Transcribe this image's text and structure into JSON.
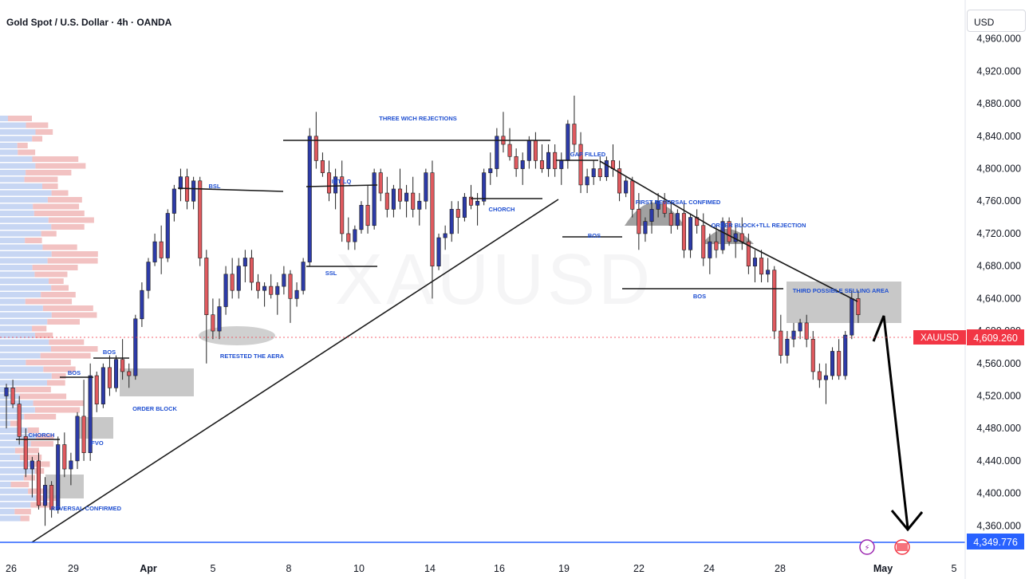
{
  "header": {
    "title": "Gold Spot / U.S. Dollar · 4h · OANDA",
    "currency": "USD",
    "watermark": "XAUUSD"
  },
  "colors": {
    "bull": "#2d3ba8",
    "bear": "#e05a5f",
    "label": "#1f4fd1",
    "price_tag": "#f23645",
    "blue_line": "#2962ff",
    "zone": "#b5b5b5",
    "profile_blue": "#c7d6f3",
    "profile_red": "#f2c2c2"
  },
  "chart_data": {
    "type": "candlestick",
    "symbol": "XAUUSD",
    "timeframe": "4h",
    "ylim": [
      4320,
      5000
    ],
    "y_ticks": [
      4360,
      4400,
      4440,
      4480,
      4520,
      4560,
      4600,
      4640,
      4680,
      4720,
      4760,
      4800,
      4840,
      4880,
      4920,
      4960
    ],
    "y_tick_labels": [
      "4,360.000",
      "4,400.000",
      "4,440.000",
      "4,480.000",
      "4,520.000",
      "4,560.000",
      "4,600.000",
      "4,640.000",
      "4,680.000",
      "4,720.000",
      "4,760.000",
      "4,800.000",
      "4,840.000",
      "4,880.000",
      "4,920.000",
      "4,960.000"
    ],
    "x_labels": [
      "26",
      "29",
      "Apr",
      "5",
      "8",
      "10",
      "14",
      "16",
      "19",
      "22",
      "24",
      "28",
      "May",
      "5"
    ],
    "last_price": {
      "label": "XAUUSD",
      "value": "4,609.260"
    },
    "support_line": {
      "value": "4,349.776"
    },
    "grid": false,
    "annotations": [
      "THREE WICH REJECTIONS",
      "GAP FILLED",
      "BSL",
      "INT LQ",
      "FIRST REVERSAL CONFIMED",
      "ORDER BLOCK+TLL REJECTION",
      "BOS",
      "BOS",
      "CHORCH",
      "SSL",
      "THIRD POSSIBLE SELLING AREA",
      "BOS",
      "BOS",
      "CHORCH",
      "FVO",
      "ORDER BLOCK",
      "RETESTED THE AERA",
      "REVERSAL CONFIRMED"
    ],
    "candles": [
      [
        4520,
        4535,
        4480,
        4530
      ],
      [
        4530,
        4540,
        4505,
        4510
      ],
      [
        4510,
        4520,
        4460,
        4470
      ],
      [
        4470,
        4480,
        4420,
        4430
      ],
      [
        4430,
        4445,
        4395,
        4440
      ],
      [
        4440,
        4450,
        4380,
        4385
      ],
      [
        4385,
        4420,
        4360,
        4410
      ],
      [
        4410,
        4415,
        4370,
        4380
      ],
      [
        4380,
        4470,
        4375,
        4460
      ],
      [
        4460,
        4475,
        4420,
        4430
      ],
      [
        4430,
        4450,
        4410,
        4440
      ],
      [
        4440,
        4500,
        4430,
        4495
      ],
      [
        4495,
        4540,
        4440,
        4450
      ],
      [
        4450,
        4560,
        4440,
        4545
      ],
      [
        4545,
        4550,
        4500,
        4510
      ],
      [
        4510,
        4560,
        4505,
        4555
      ],
      [
        4555,
        4570,
        4520,
        4530
      ],
      [
        4530,
        4570,
        4525,
        4565
      ],
      [
        4565,
        4590,
        4540,
        4550
      ],
      [
        4550,
        4560,
        4530,
        4545
      ],
      [
        4545,
        4620,
        4540,
        4615
      ],
      [
        4615,
        4660,
        4605,
        4650
      ],
      [
        4650,
        4690,
        4640,
        4685
      ],
      [
        4685,
        4720,
        4680,
        4710
      ],
      [
        4710,
        4730,
        4670,
        4690
      ],
      [
        4690,
        4750,
        4685,
        4745
      ],
      [
        4745,
        4780,
        4735,
        4775
      ],
      [
        4775,
        4800,
        4760,
        4790
      ],
      [
        4790,
        4800,
        4750,
        4760
      ],
      [
        4760,
        4790,
        4750,
        4785
      ],
      [
        4785,
        4790,
        4680,
        4690
      ],
      [
        4690,
        4700,
        4560,
        4620
      ],
      [
        4620,
        4640,
        4590,
        4600
      ],
      [
        4600,
        4640,
        4590,
        4630
      ],
      [
        4630,
        4680,
        4620,
        4670
      ],
      [
        4670,
        4690,
        4640,
        4650
      ],
      [
        4650,
        4690,
        4640,
        4680
      ],
      [
        4680,
        4700,
        4660,
        4690
      ],
      [
        4690,
        4700,
        4650,
        4660
      ],
      [
        4660,
        4670,
        4640,
        4650
      ],
      [
        4650,
        4660,
        4630,
        4655
      ],
      [
        4655,
        4670,
        4640,
        4645
      ],
      [
        4645,
        4660,
        4620,
        4655
      ],
      [
        4655,
        4680,
        4645,
        4670
      ],
      [
        4670,
        4675,
        4610,
        4640
      ],
      [
        4640,
        4660,
        4630,
        4650
      ],
      [
        4650,
        4690,
        4645,
        4685
      ],
      [
        4685,
        4850,
        4680,
        4840
      ],
      [
        4840,
        4870,
        4800,
        4810
      ],
      [
        4810,
        4820,
        4790,
        4795
      ],
      [
        4795,
        4810,
        4760,
        4770
      ],
      [
        4770,
        4800,
        4750,
        4790
      ],
      [
        4790,
        4810,
        4710,
        4720
      ],
      [
        4720,
        4740,
        4700,
        4710
      ],
      [
        4710,
        4730,
        4700,
        4725
      ],
      [
        4725,
        4760,
        4720,
        4755
      ],
      [
        4755,
        4780,
        4720,
        4730
      ],
      [
        4730,
        4800,
        4725,
        4795
      ],
      [
        4795,
        4800,
        4760,
        4770
      ],
      [
        4770,
        4790,
        4740,
        4750
      ],
      [
        4750,
        4780,
        4740,
        4775
      ],
      [
        4775,
        4800,
        4750,
        4760
      ],
      [
        4760,
        4780,
        4740,
        4770
      ],
      [
        4770,
        4790,
        4740,
        4750
      ],
      [
        4750,
        4770,
        4730,
        4760
      ],
      [
        4760,
        4800,
        4750,
        4795
      ],
      [
        4795,
        4810,
        4640,
        4680
      ],
      [
        4680,
        4720,
        4675,
        4715
      ],
      [
        4715,
        4730,
        4700,
        4720
      ],
      [
        4720,
        4760,
        4710,
        4750
      ],
      [
        4750,
        4760,
        4720,
        4740
      ],
      [
        4740,
        4770,
        4735,
        4765
      ],
      [
        4765,
        4780,
        4750,
        4755
      ],
      [
        4755,
        4770,
        4730,
        4760
      ],
      [
        4760,
        4800,
        4755,
        4795
      ],
      [
        4795,
        4820,
        4780,
        4800
      ],
      [
        4800,
        4850,
        4790,
        4840
      ],
      [
        4840,
        4870,
        4820,
        4830
      ],
      [
        4830,
        4850,
        4810,
        4815
      ],
      [
        4815,
        4825,
        4790,
        4800
      ],
      [
        4800,
        4820,
        4780,
        4810
      ],
      [
        4810,
        4840,
        4800,
        4835
      ],
      [
        4835,
        4845,
        4800,
        4810
      ],
      [
        4810,
        4830,
        4795,
        4800
      ],
      [
        4800,
        4830,
        4790,
        4820
      ],
      [
        4820,
        4830,
        4790,
        4800
      ],
      [
        4800,
        4820,
        4780,
        4810
      ],
      [
        4810,
        4860,
        4800,
        4855
      ],
      [
        4855,
        4890,
        4820,
        4830
      ],
      [
        4830,
        4845,
        4770,
        4780
      ],
      [
        4780,
        4800,
        4770,
        4790
      ],
      [
        4790,
        4810,
        4780,
        4800
      ],
      [
        4800,
        4815,
        4785,
        4790
      ],
      [
        4790,
        4815,
        4785,
        4810
      ],
      [
        4810,
        4830,
        4790,
        4800
      ],
      [
        4800,
        4810,
        4760,
        4770
      ],
      [
        4770,
        4790,
        4765,
        4785
      ],
      [
        4785,
        4790,
        4740,
        4750
      ],
      [
        4750,
        4770,
        4700,
        4720
      ],
      [
        4720,
        4740,
        4710,
        4735
      ],
      [
        4735,
        4760,
        4720,
        4750
      ],
      [
        4750,
        4770,
        4740,
        4760
      ],
      [
        4760,
        4770,
        4740,
        4745
      ],
      [
        4745,
        4760,
        4720,
        4730
      ],
      [
        4730,
        4750,
        4725,
        4745
      ],
      [
        4745,
        4760,
        4690,
        4700
      ],
      [
        4700,
        4745,
        4690,
        4740
      ],
      [
        4740,
        4750,
        4720,
        4730
      ],
      [
        4730,
        4745,
        4680,
        4690
      ],
      [
        4690,
        4720,
        4670,
        4710
      ],
      [
        4710,
        4730,
        4690,
        4700
      ],
      [
        4700,
        4740,
        4695,
        4735
      ],
      [
        4735,
        4740,
        4705,
        4710
      ],
      [
        4710,
        4730,
        4690,
        4720
      ],
      [
        4720,
        4740,
        4700,
        4710
      ],
      [
        4710,
        4720,
        4670,
        4680
      ],
      [
        4680,
        4700,
        4660,
        4690
      ],
      [
        4690,
        4700,
        4660,
        4670
      ],
      [
        4670,
        4690,
        4660,
        4675
      ],
      [
        4675,
        4680,
        4590,
        4600
      ],
      [
        4600,
        4620,
        4560,
        4570
      ],
      [
        4570,
        4600,
        4560,
        4590
      ],
      [
        4590,
        4610,
        4580,
        4600
      ],
      [
        4600,
        4615,
        4590,
        4610
      ],
      [
        4610,
        4620,
        4580,
        4590
      ],
      [
        4590,
        4600,
        4540,
        4550
      ],
      [
        4550,
        4560,
        4530,
        4540
      ],
      [
        4540,
        4560,
        4510,
        4545
      ],
      [
        4545,
        4580,
        4540,
        4575
      ],
      [
        4575,
        4590,
        4540,
        4545
      ],
      [
        4545,
        4600,
        4540,
        4595
      ],
      [
        4595,
        4650,
        4590,
        4640
      ],
      [
        4640,
        4650,
        4610,
        4620
      ]
    ]
  }
}
